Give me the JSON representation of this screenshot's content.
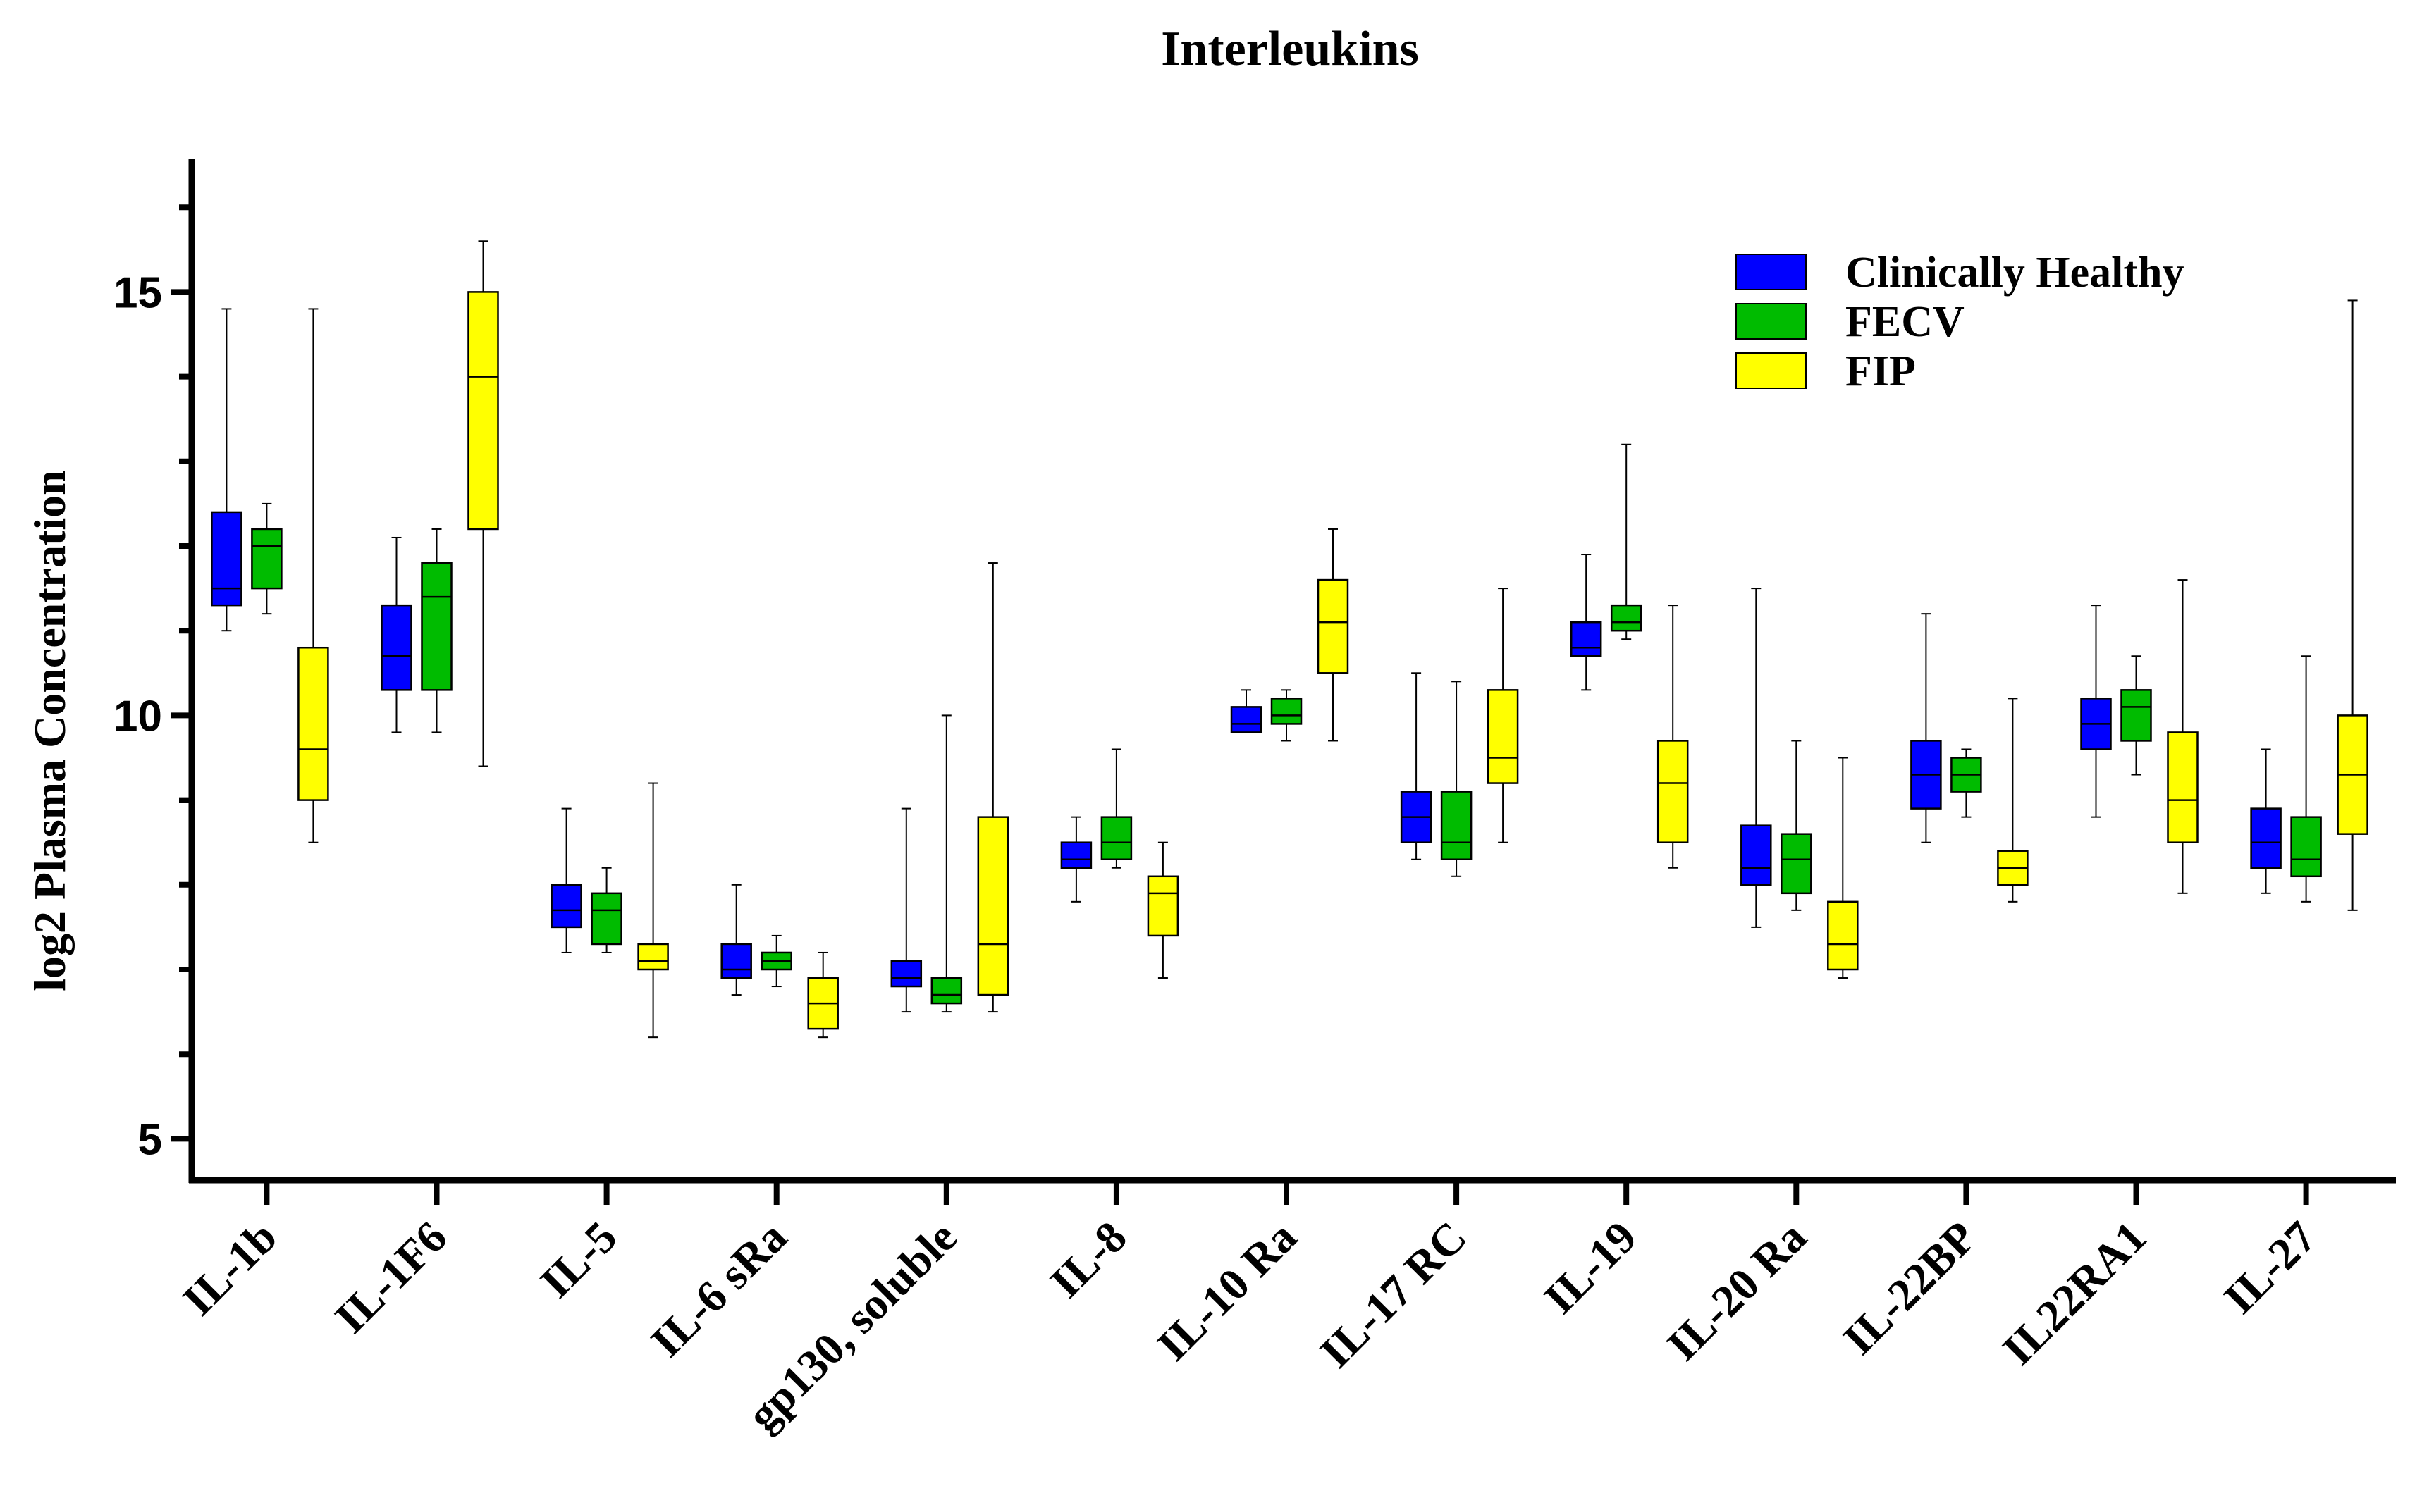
{
  "chart_data": {
    "type": "boxplot",
    "title": "Interleukins",
    "xlabel": "",
    "ylabel": "log2 Plasma Concentration",
    "ylim": [
      4,
      16
    ],
    "yticks_major": [
      5,
      10,
      15
    ],
    "yticks_minor": [
      6,
      7,
      8,
      9,
      11,
      12,
      13,
      14,
      16
    ],
    "legend_position": "top-right",
    "categories": [
      "IL-1b",
      "IL-1F6",
      "IL-5",
      "IL-6 sRa",
      "gp130, soluble",
      "IL-8",
      "IL-10 Ra",
      "IL-17 RC",
      "IL-19",
      "IL-20 Ra",
      "IL-22BP",
      "IL22RA1",
      "IL-27"
    ],
    "series": [
      {
        "name": "Clinically Healthy",
        "color": "#0000ff",
        "boxes": [
          {
            "min": 11.0,
            "q1": 11.3,
            "median": 11.5,
            "q3": 12.4,
            "max": 14.8
          },
          {
            "min": 9.8,
            "q1": 10.3,
            "median": 10.7,
            "q3": 11.3,
            "max": 12.1
          },
          {
            "min": 7.2,
            "q1": 7.5,
            "median": 7.7,
            "q3": 8.0,
            "max": 8.9
          },
          {
            "min": 6.7,
            "q1": 6.9,
            "median": 7.0,
            "q3": 7.3,
            "max": 8.0
          },
          {
            "min": 6.5,
            "q1": 6.8,
            "median": 6.9,
            "q3": 7.1,
            "max": 8.9
          },
          {
            "min": 7.8,
            "q1": 8.2,
            "median": 8.3,
            "q3": 8.5,
            "max": 8.8
          },
          {
            "min": 9.8,
            "q1": 9.8,
            "median": 9.9,
            "q3": 10.1,
            "max": 10.3
          },
          {
            "min": 8.3,
            "q1": 8.5,
            "median": 8.8,
            "q3": 9.1,
            "max": 10.5
          },
          {
            "min": 10.3,
            "q1": 10.7,
            "median": 10.8,
            "q3": 11.1,
            "max": 11.9
          },
          {
            "min": 7.5,
            "q1": 8.0,
            "median": 8.2,
            "q3": 8.7,
            "max": 11.5
          },
          {
            "min": 8.5,
            "q1": 8.9,
            "median": 9.3,
            "q3": 9.7,
            "max": 11.2
          },
          {
            "min": 8.8,
            "q1": 9.6,
            "median": 9.9,
            "q3": 10.2,
            "max": 11.3
          },
          {
            "min": 7.9,
            "q1": 8.2,
            "median": 8.5,
            "q3": 8.9,
            "max": 9.6
          }
        ]
      },
      {
        "name": "FECV",
        "color": "#00bb00",
        "boxes": [
          {
            "min": 11.2,
            "q1": 11.5,
            "median": 12.0,
            "q3": 12.2,
            "max": 12.5
          },
          {
            "min": 9.8,
            "q1": 10.3,
            "median": 11.4,
            "q3": 11.8,
            "max": 12.2
          },
          {
            "min": 7.2,
            "q1": 7.3,
            "median": 7.7,
            "q3": 7.9,
            "max": 8.2
          },
          {
            "min": 6.8,
            "q1": 7.0,
            "median": 7.1,
            "q3": 7.2,
            "max": 7.4
          },
          {
            "min": 6.5,
            "q1": 6.6,
            "median": 6.7,
            "q3": 6.9,
            "max": 10.0
          },
          {
            "min": 8.2,
            "q1": 8.3,
            "median": 8.5,
            "q3": 8.8,
            "max": 9.6
          },
          {
            "min": 9.7,
            "q1": 9.9,
            "median": 10.0,
            "q3": 10.2,
            "max": 10.3
          },
          {
            "min": 8.1,
            "q1": 8.3,
            "median": 8.5,
            "q3": 9.1,
            "max": 10.4
          },
          {
            "min": 10.9,
            "q1": 11.0,
            "median": 11.1,
            "q3": 11.3,
            "max": 13.2
          },
          {
            "min": 7.7,
            "q1": 7.9,
            "median": 8.3,
            "q3": 8.6,
            "max": 9.7
          },
          {
            "min": 8.8,
            "q1": 9.1,
            "median": 9.3,
            "q3": 9.5,
            "max": 9.6
          },
          {
            "min": 9.3,
            "q1": 9.7,
            "median": 10.1,
            "q3": 10.3,
            "max": 10.7
          },
          {
            "min": 7.8,
            "q1": 8.1,
            "median": 8.3,
            "q3": 8.8,
            "max": 10.7
          }
        ]
      },
      {
        "name": "FIP",
        "color": "#ffff00",
        "boxes": [
          {
            "min": 8.5,
            "q1": 9.0,
            "median": 9.6,
            "q3": 10.8,
            "max": 14.8
          },
          {
            "min": 9.4,
            "q1": 12.2,
            "median": 14.0,
            "q3": 15.0,
            "max": 15.6
          },
          {
            "min": 6.2,
            "q1": 7.0,
            "median": 7.1,
            "q3": 7.3,
            "max": 9.2
          },
          {
            "min": 6.2,
            "q1": 6.3,
            "median": 6.6,
            "q3": 6.9,
            "max": 7.2
          },
          {
            "min": 6.5,
            "q1": 6.7,
            "median": 7.3,
            "q3": 8.8,
            "max": 11.8
          },
          {
            "min": 6.9,
            "q1": 7.4,
            "median": 7.9,
            "q3": 8.1,
            "max": 8.5
          },
          {
            "min": 9.7,
            "q1": 10.5,
            "median": 11.1,
            "q3": 11.6,
            "max": 12.2
          },
          {
            "min": 8.5,
            "q1": 9.2,
            "median": 9.5,
            "q3": 10.3,
            "max": 11.5
          },
          {
            "min": 8.2,
            "q1": 8.5,
            "median": 9.2,
            "q3": 9.7,
            "max": 11.3
          },
          {
            "min": 6.9,
            "q1": 7.0,
            "median": 7.3,
            "q3": 7.8,
            "max": 9.5
          },
          {
            "min": 7.8,
            "q1": 8.0,
            "median": 8.2,
            "q3": 8.4,
            "max": 10.2
          },
          {
            "min": 7.9,
            "q1": 8.5,
            "median": 9.0,
            "q3": 9.8,
            "max": 11.6
          },
          {
            "min": 7.7,
            "q1": 8.6,
            "median": 9.3,
            "q3": 10.0,
            "max": 14.9
          }
        ]
      }
    ]
  }
}
